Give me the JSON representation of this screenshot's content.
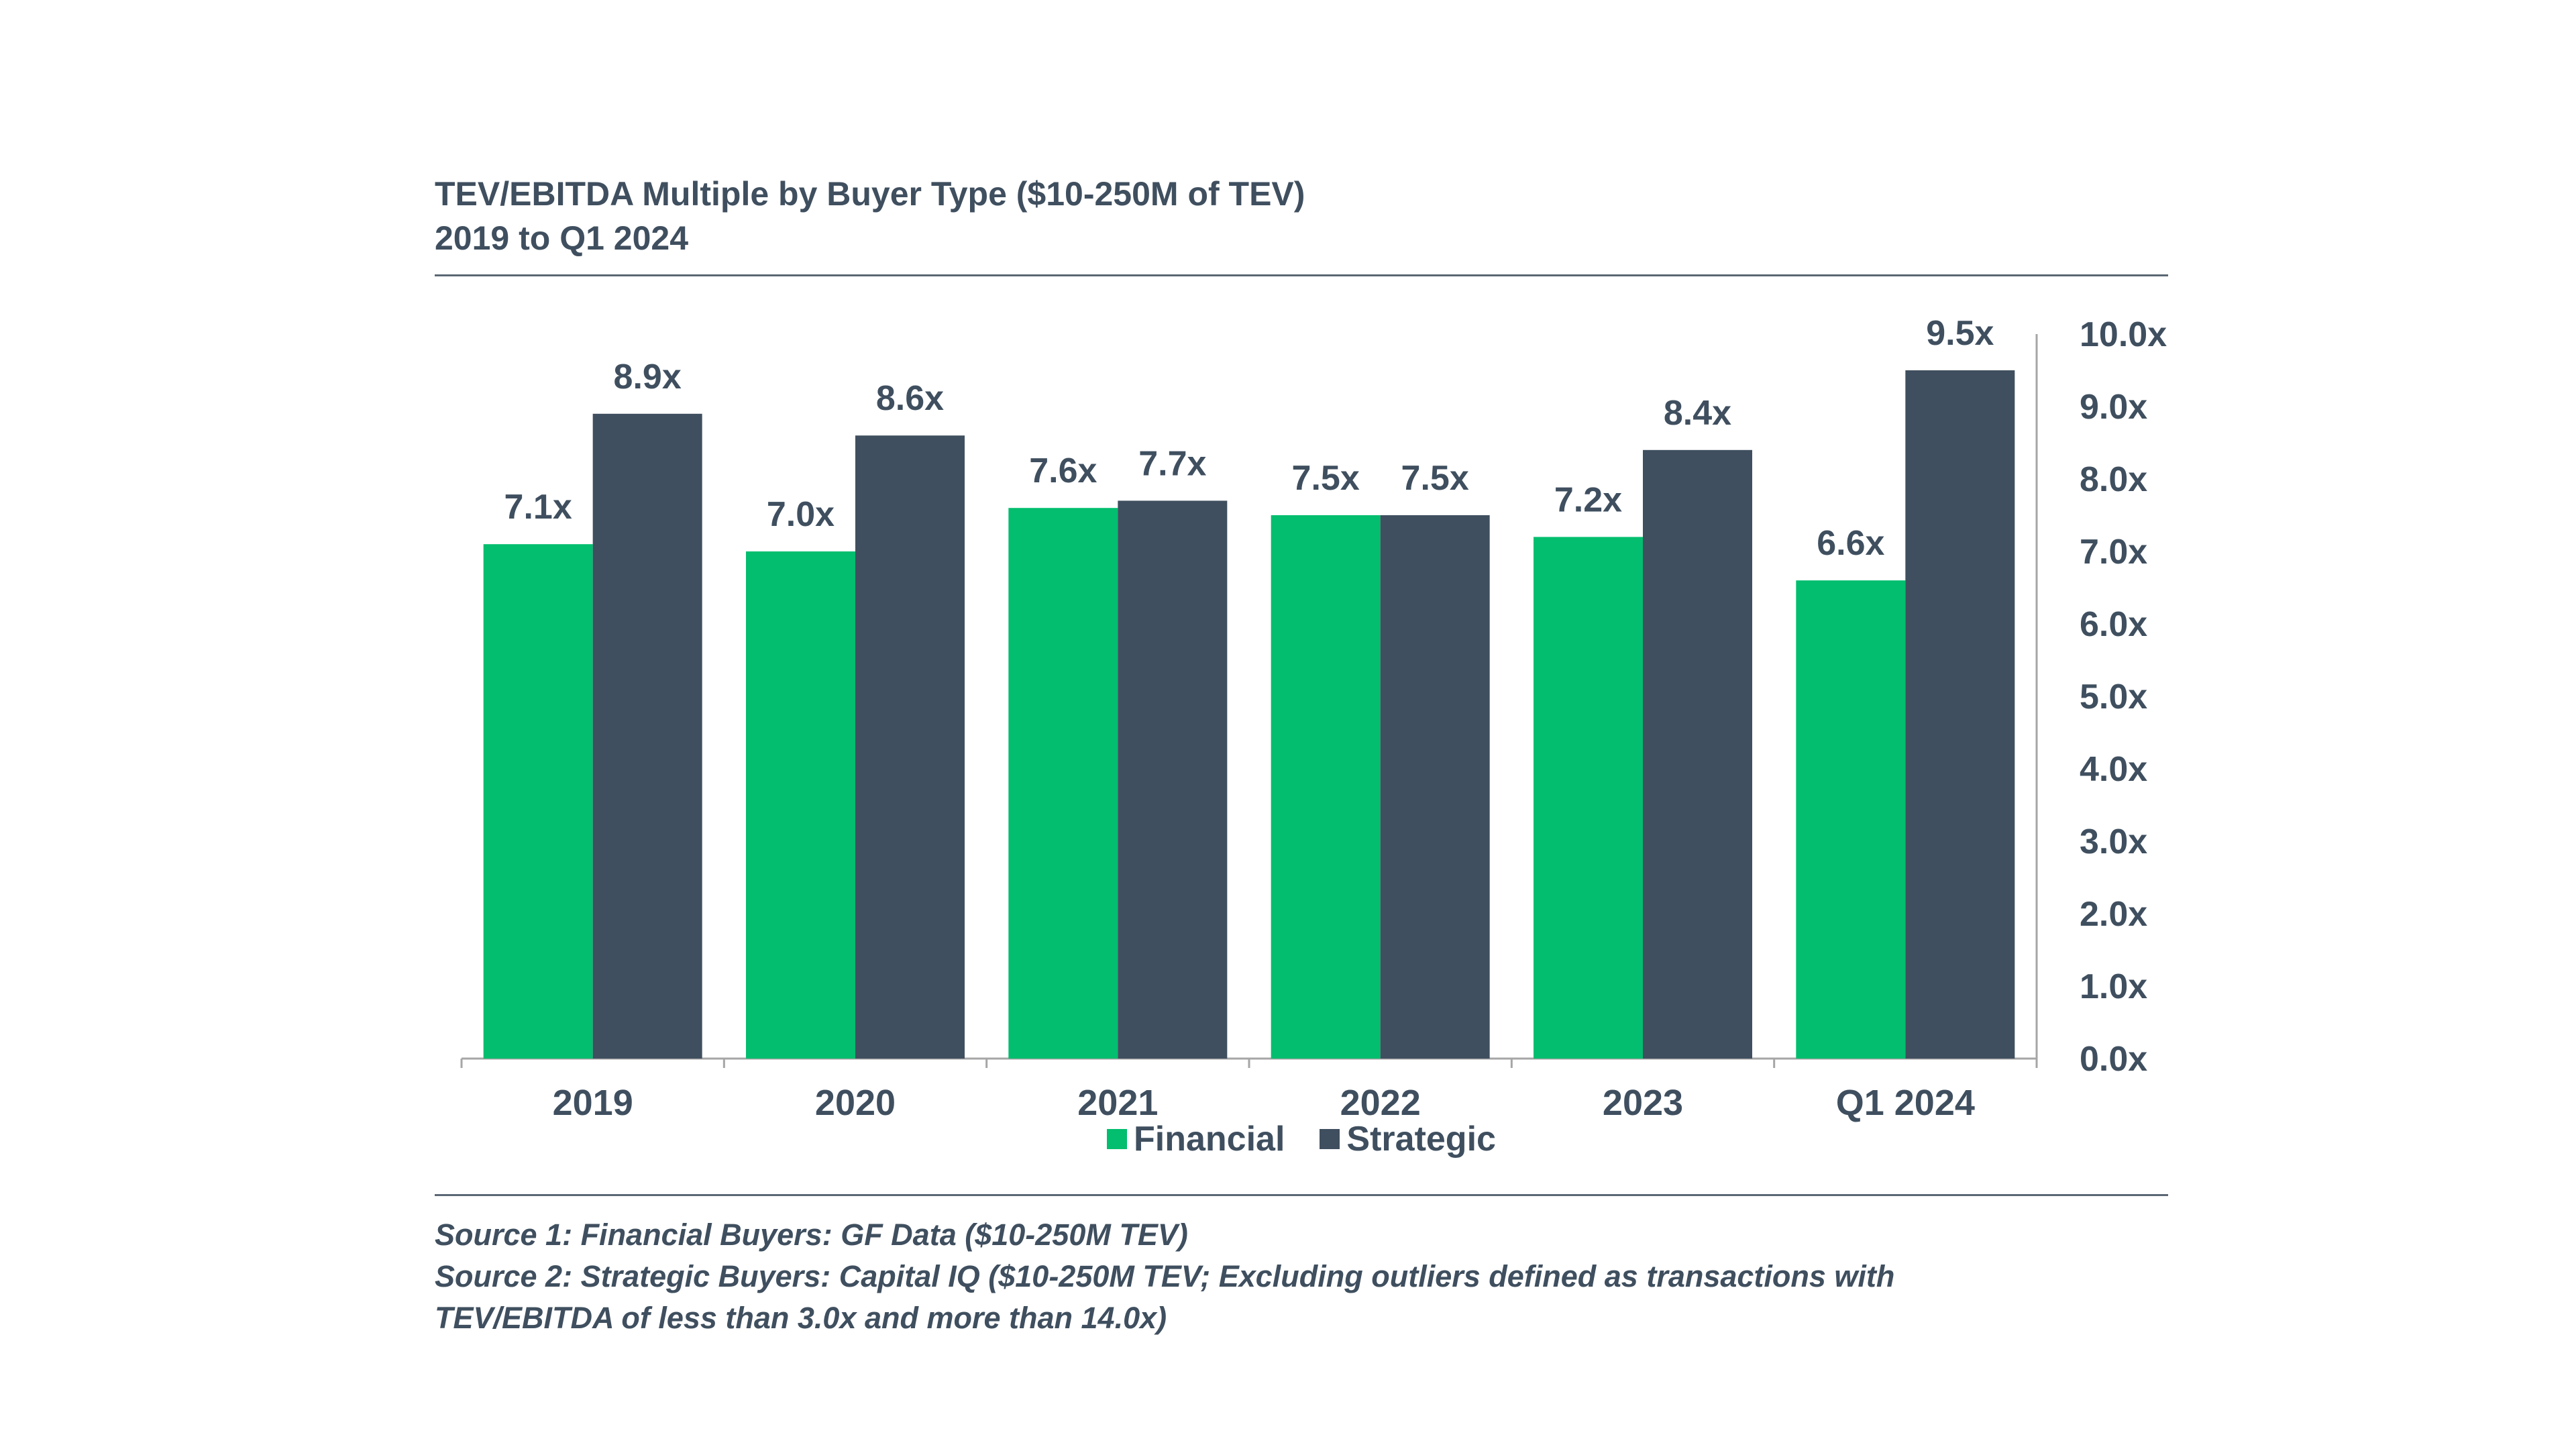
{
  "title": {
    "line1": "TEV/EBITDA Multiple by Buyer Type ($10-250M of TEV)",
    "line2": "2019 to Q1 2024"
  },
  "legend": {
    "financial": "Financial",
    "strategic": "Strategic"
  },
  "sources": {
    "line1": "Source 1: Financial Buyers: GF Data ($10-250M TEV)",
    "line2": "Source 2: Strategic Buyers: Capital IQ ($10-250M TEV; Excluding outliers defined as transactions with",
    "line3": "TEV/EBITDA of less than 3.0x and more than 14.0x)"
  },
  "colors": {
    "financial": "#02be6e",
    "strategic": "#3f4f5f",
    "text": "#3f4f5f",
    "axis": "#a6a6a6"
  },
  "chart_data": {
    "type": "bar",
    "title": "TEV/EBITDA Multiple by Buyer Type ($10-250M of TEV)",
    "subtitle": "2019 to Q1 2024",
    "categories": [
      "2019",
      "2020",
      "2021",
      "2022",
      "2023",
      "Q1 2024"
    ],
    "series": [
      {
        "name": "Financial",
        "values": [
          7.1,
          7.0,
          7.6,
          7.5,
          7.2,
          6.6
        ],
        "labels": [
          "7.1x",
          "7.0x",
          "7.6x",
          "7.5x",
          "7.2x",
          "6.6x"
        ],
        "color": "#02be6e"
      },
      {
        "name": "Strategic",
        "values": [
          8.9,
          8.6,
          7.7,
          7.5,
          8.4,
          9.5
        ],
        "labels": [
          "8.9x",
          "8.6x",
          "7.7x",
          "7.5x",
          "8.4x",
          "9.5x"
        ],
        "color": "#3f4f5f"
      }
    ],
    "ylim": [
      0,
      10
    ],
    "y_ticks": [
      "0.0x",
      "1.0x",
      "2.0x",
      "3.0x",
      "4.0x",
      "5.0x",
      "6.0x",
      "7.0x",
      "8.0x",
      "9.0x",
      "10.0x"
    ],
    "y_axis_position": "right",
    "xlabel": "",
    "ylabel": "",
    "grid": false,
    "legend_position": "bottom"
  }
}
